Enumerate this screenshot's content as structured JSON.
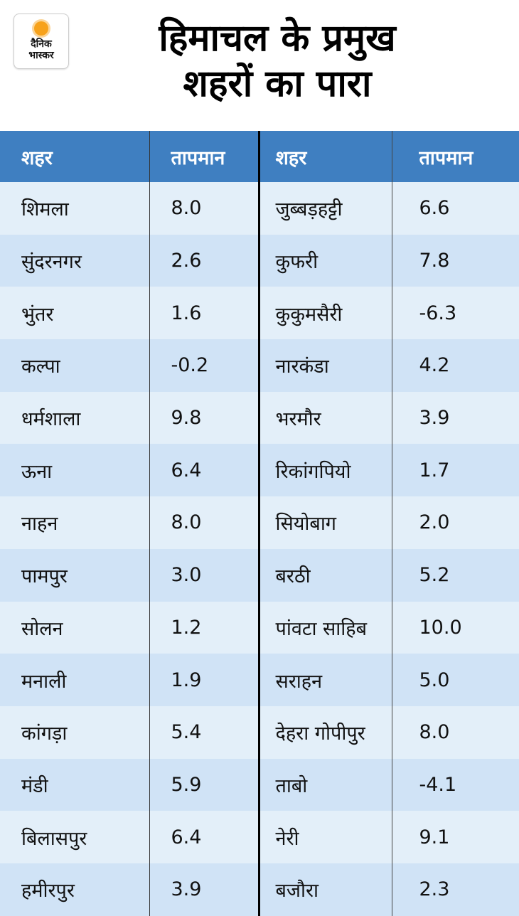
{
  "logo": {
    "line1": "दैनिक",
    "line2": "भास्कर"
  },
  "title": {
    "line1": "हिमाचल के प्रमुख",
    "line2": "शहरों का पारा"
  },
  "table": {
    "headers": [
      "शहर",
      "तापमान",
      "शहर",
      "तापमान"
    ],
    "rows": [
      [
        "शिमला",
        "8.0",
        "जुब्बड़हट्टी",
        "6.6"
      ],
      [
        "सुंदरनगर",
        "2.6",
        "कुफरी",
        "7.8"
      ],
      [
        "भुंतर",
        "1.6",
        "कुकुमसैरी",
        "-6.3"
      ],
      [
        "कल्पा",
        "-0.2",
        "नारकंडा",
        "4.2"
      ],
      [
        "धर्मशाला",
        "9.8",
        "भरमौर",
        "3.9"
      ],
      [
        "ऊना",
        "6.4",
        "रिकांगपियो",
        "1.7"
      ],
      [
        "नाहन",
        "8.0",
        "सियोबाग",
        "2.0"
      ],
      [
        "पामपुर",
        "3.0",
        "बरठी",
        "5.2"
      ],
      [
        "सोलन",
        "1.2",
        "पांवटा साहिब",
        "10.0"
      ],
      [
        "मनाली",
        "1.9",
        "सराहन",
        "5.0"
      ],
      [
        "कांगड़ा",
        "5.4",
        "देहरा गोपीपुर",
        "8.0"
      ],
      [
        "मंडी",
        "5.9",
        "ताबो",
        "-4.1"
      ],
      [
        "बिलासपुर",
        "6.4",
        "नेरी",
        "9.1"
      ],
      [
        "हमीरपुर",
        "3.9",
        "बजौरा",
        "2.3"
      ]
    ]
  },
  "colors": {
    "header": "#3f7fc1",
    "row_light": "#e3eff9",
    "row_dark": "#d0e3f6",
    "logo_sun": "#f7a21b"
  }
}
